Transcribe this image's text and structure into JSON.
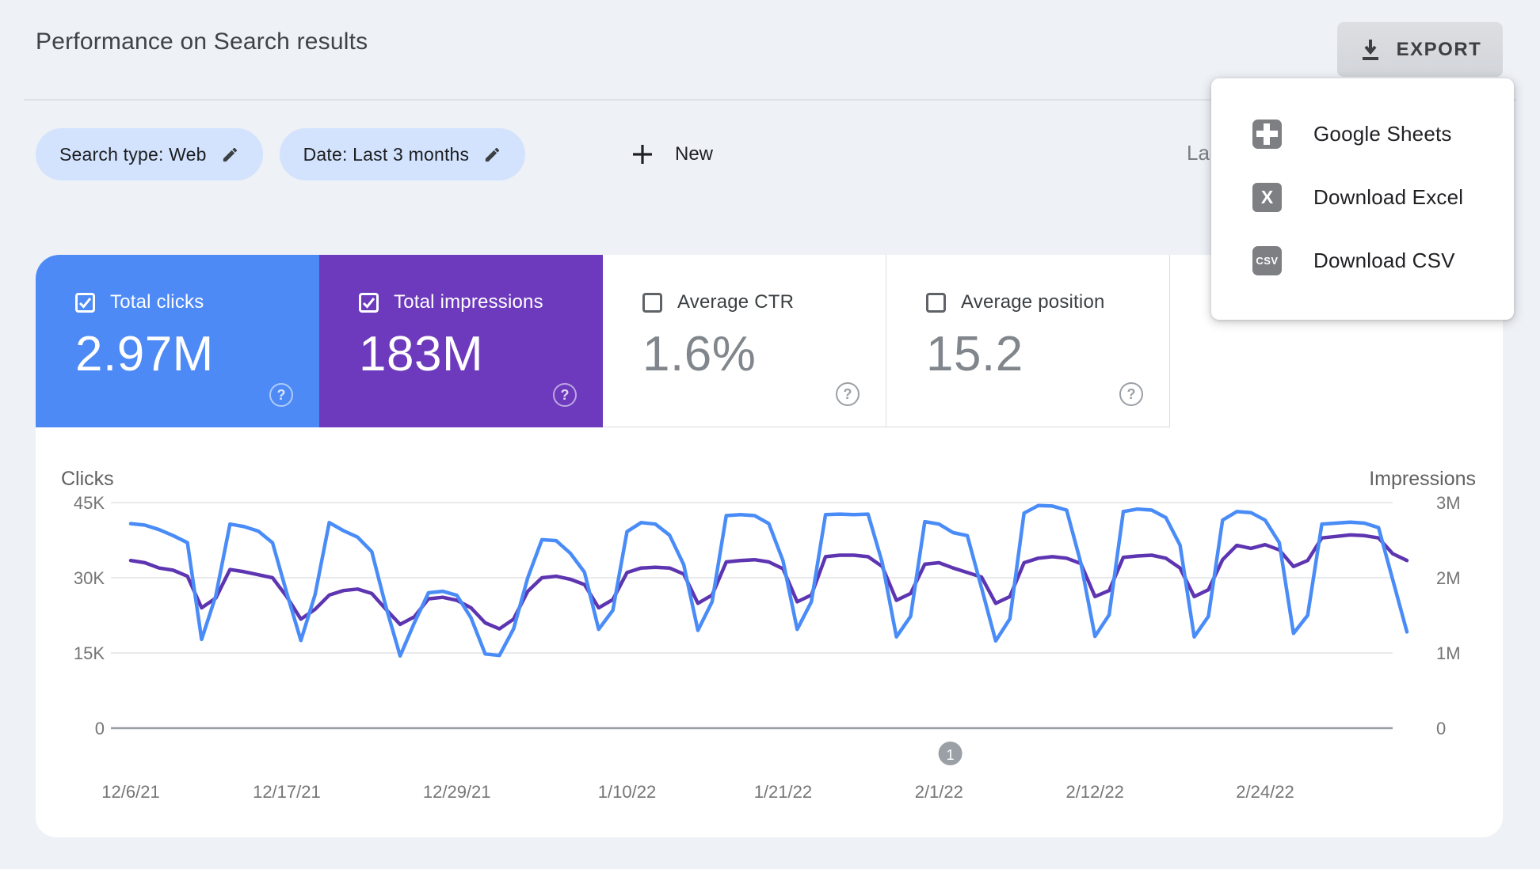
{
  "header": {
    "title": "Performance on Search results",
    "export_label": "EXPORT"
  },
  "filters": {
    "search_type_chip": "Search type: Web",
    "date_chip": "Date: Last 3 months",
    "new_label": "New",
    "last_updated_partial": "La"
  },
  "export_menu": {
    "items": [
      {
        "label": "Google Sheets",
        "icon": "google-sheets-icon",
        "icon_text": ""
      },
      {
        "label": "Download Excel",
        "icon": "excel-icon",
        "icon_text": "X"
      },
      {
        "label": "Download CSV",
        "icon": "csv-icon",
        "icon_text": "CSV"
      }
    ]
  },
  "metric_tiles": [
    {
      "label": "Total clicks",
      "value": "2.97M",
      "checked": true,
      "color": "#4d8af5"
    },
    {
      "label": "Total impressions",
      "value": "183M",
      "checked": true,
      "color": "#6d3abe"
    },
    {
      "label": "Average CTR",
      "value": "1.6%",
      "checked": false,
      "color": "#ffffff"
    },
    {
      "label": "Average position",
      "value": "15.2",
      "checked": false,
      "color": "#ffffff"
    }
  ],
  "chart_data": {
    "type": "line",
    "grid": true,
    "left_axis": {
      "title": "Clicks",
      "ticks": [
        "45K",
        "30K",
        "15K",
        "0"
      ],
      "range": [
        0,
        45000
      ]
    },
    "right_axis": {
      "title": "Impressions",
      "ticks": [
        "3M",
        "2M",
        "1M",
        "0"
      ],
      "range": [
        0,
        3000000
      ]
    },
    "x_start_date": "12/6/21",
    "x_ticks": [
      {
        "label": "12/6/21",
        "day": 0
      },
      {
        "label": "12/17/21",
        "day": 11
      },
      {
        "label": "12/29/21",
        "day": 23
      },
      {
        "label": "1/10/22",
        "day": 35
      },
      {
        "label": "1/21/22",
        "day": 46
      },
      {
        "label": "2/1/22",
        "day": 57
      },
      {
        "label": "2/12/22",
        "day": 68
      },
      {
        "label": "2/24/22",
        "day": 80
      }
    ],
    "pagination_label": "1",
    "series": [
      {
        "name": "Clicks",
        "axis": "left",
        "unit": "thousands",
        "color": "#4a8cf7",
        "values": [
          40.8,
          40.5,
          39.6,
          38.4,
          37.0,
          17.7,
          26.4,
          40.7,
          40.2,
          39.3,
          37.0,
          27.0,
          17.5,
          26.6,
          41.0,
          39.4,
          38.1,
          35.2,
          24.2,
          14.4,
          21.0,
          27.0,
          27.3,
          26.5,
          22.0,
          14.8,
          14.5,
          19.8,
          30.0,
          37.6,
          37.4,
          34.9,
          31.1,
          19.7,
          23.5,
          39.2,
          41.0,
          40.7,
          38.5,
          32.6,
          19.5,
          25.2,
          42.4,
          42.6,
          42.4,
          40.8,
          33.4,
          19.7,
          25.2,
          42.6,
          42.7,
          42.6,
          42.7,
          33.0,
          18.2,
          22.3,
          41.2,
          40.7,
          39.0,
          38.4,
          28.0,
          17.4,
          21.8,
          42.9,
          44.4,
          44.3,
          43.5,
          33.0,
          18.3,
          22.6,
          43.2,
          43.7,
          43.5,
          42.0,
          36.5,
          18.2,
          22.3,
          41.5,
          43.2,
          43.0,
          41.5,
          37.0,
          18.9,
          22.5,
          40.7,
          40.9,
          41.1,
          40.9,
          40.0,
          29.6,
          19.2
        ]
      },
      {
        "name": "Impressions",
        "axis": "right",
        "unit": "millions",
        "color": "#5e35b1",
        "values": [
          2.23,
          2.2,
          2.13,
          2.1,
          2.02,
          1.6,
          1.73,
          2.11,
          2.08,
          2.04,
          2.0,
          1.75,
          1.45,
          1.58,
          1.77,
          1.83,
          1.85,
          1.79,
          1.58,
          1.38,
          1.48,
          1.72,
          1.74,
          1.7,
          1.6,
          1.4,
          1.32,
          1.45,
          1.82,
          2.0,
          2.02,
          1.98,
          1.91,
          1.6,
          1.71,
          2.07,
          2.13,
          2.14,
          2.13,
          2.05,
          1.66,
          1.77,
          2.21,
          2.23,
          2.24,
          2.21,
          2.12,
          1.68,
          1.77,
          2.28,
          2.3,
          2.3,
          2.28,
          2.15,
          1.7,
          1.79,
          2.18,
          2.2,
          2.13,
          2.07,
          2.01,
          1.66,
          1.75,
          2.2,
          2.26,
          2.28,
          2.26,
          2.19,
          1.75,
          1.83,
          2.27,
          2.29,
          2.3,
          2.26,
          2.13,
          1.75,
          1.84,
          2.24,
          2.43,
          2.39,
          2.44,
          2.37,
          2.15,
          2.23,
          2.53,
          2.55,
          2.57,
          2.56,
          2.53,
          2.32,
          2.23
        ]
      }
    ],
    "colors": {
      "grid": "#e8eaec",
      "baseline": "#9aa0a6",
      "tick_text": "#757575",
      "axis_title_text": "#616161",
      "pagination_dot": "#9aa0a6"
    }
  }
}
